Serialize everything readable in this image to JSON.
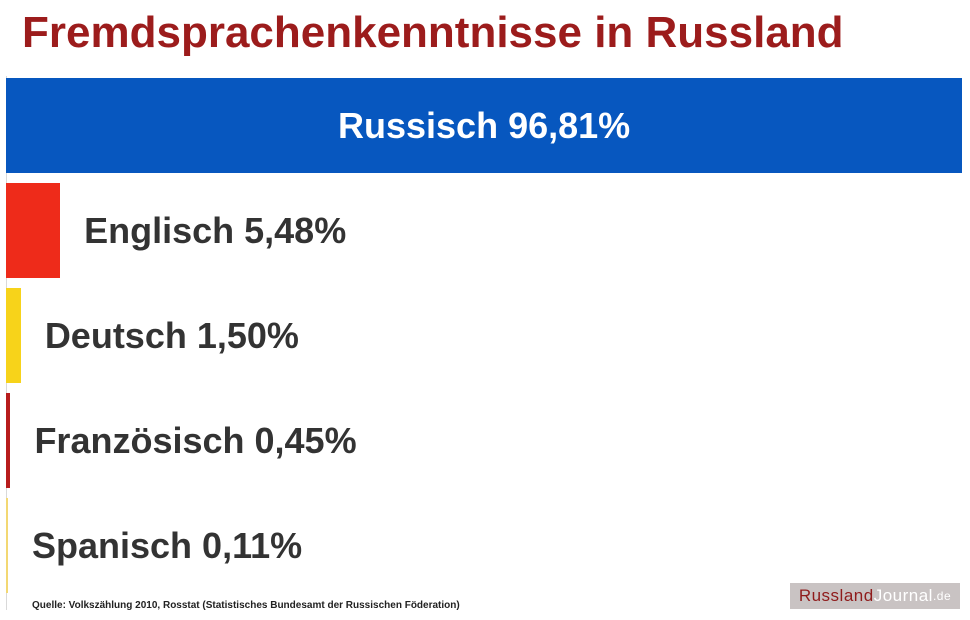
{
  "title": "Fremdsprachenkenntnisse in Russland",
  "source": "Quelle: Volkszählung 2010, Rosstat (Statistisches Bundesamt der Russischen Föderation)",
  "logo": {
    "part1": "Russland",
    "part2": "Journal",
    "part3": ".de"
  },
  "colors": {
    "title": "#9c1c1c",
    "russisch": "#0757bf",
    "englisch": "#ee2b1a",
    "deutsch": "#f7d31a",
    "franzoesisch": "#b71c1c",
    "spanisch": "#f3d873",
    "label_dark": "#333333",
    "label_light": "#ffffff"
  },
  "chart_data": {
    "type": "bar",
    "orientation": "horizontal",
    "title": "Fremdsprachenkenntnisse in Russland",
    "xlim": [
      0,
      96.81
    ],
    "categories": [
      "Russisch",
      "Englisch",
      "Deutsch",
      "Französisch",
      "Spanisch"
    ],
    "values": [
      96.81,
      5.48,
      1.5,
      0.45,
      0.11
    ],
    "data_labels": [
      "Russisch 96,81%",
      "Englisch 5,48%",
      "Deutsch 1,50%",
      "Französisch 0,45%",
      "Spanisch 0,11%"
    ],
    "bar_colors": [
      "#0757bf",
      "#ee2b1a",
      "#f7d31a",
      "#b71c1c",
      "#f3d873"
    ],
    "grid": false,
    "legend": "none"
  }
}
